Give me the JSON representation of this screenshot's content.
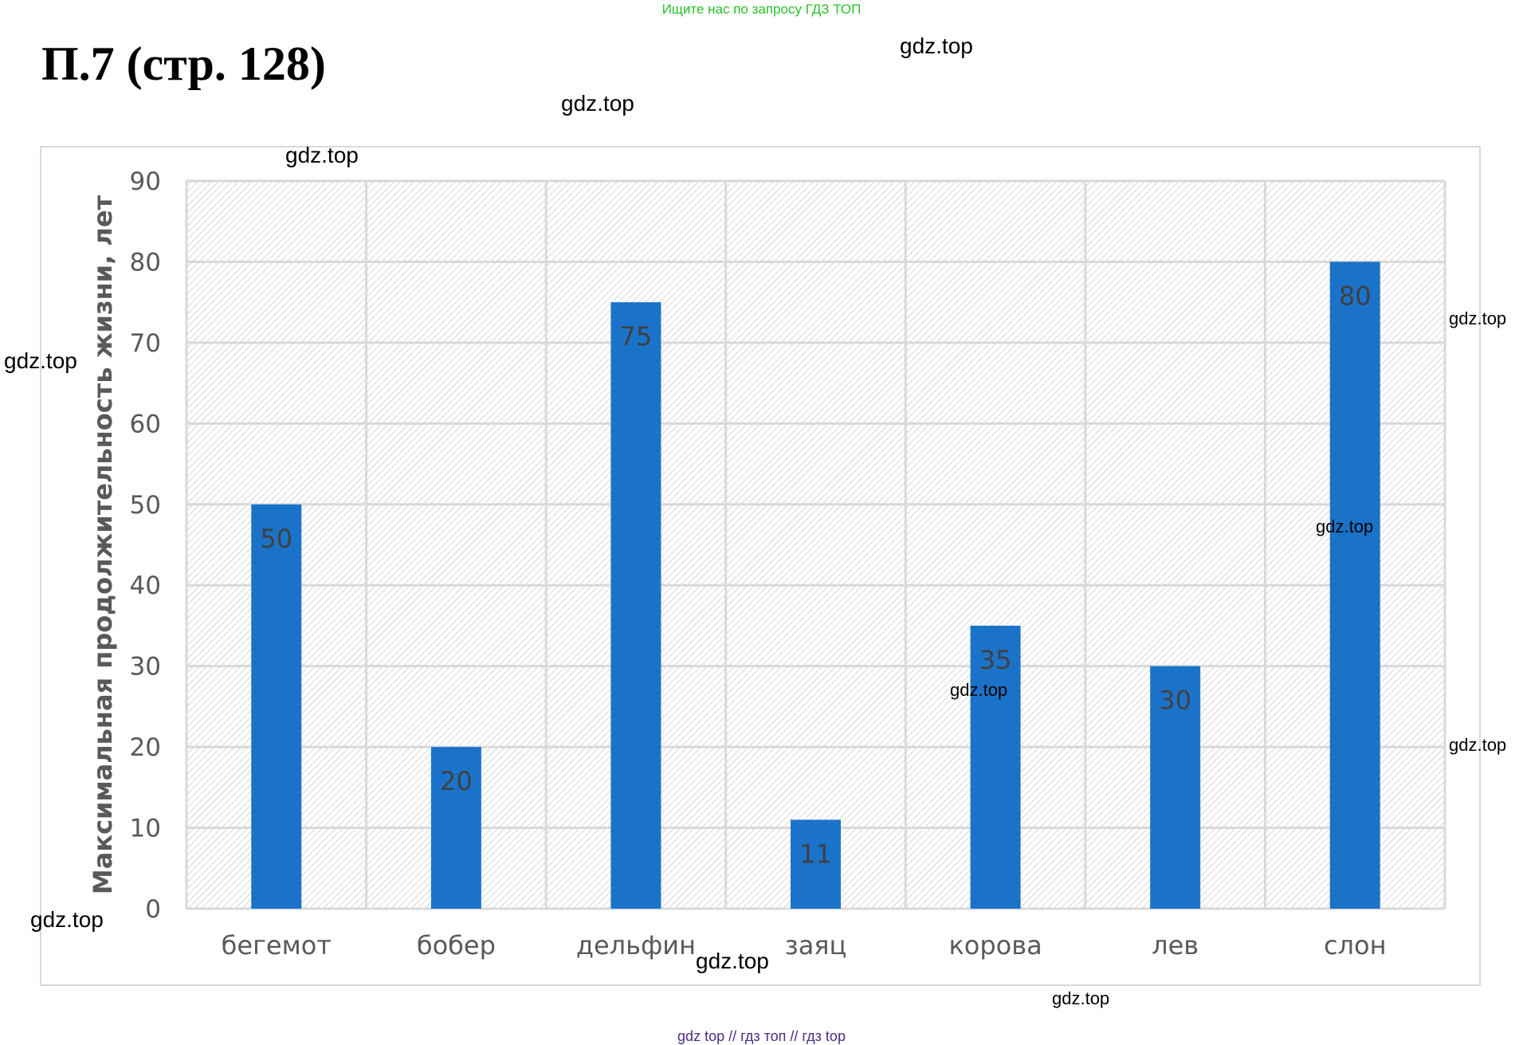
{
  "header": {
    "banner": "Ищите нас по запросу ГДЗ ТОП",
    "title": "П.7 (стр. 128)"
  },
  "watermarks": {
    "wm_1": "gdz.top",
    "wm_2": "gdz.top",
    "wm_3": "gdz.top",
    "wm_4": "gdz.top",
    "wm_5": "gdz.top",
    "wm_6": "gdz.top",
    "wm_7": "gdz.top",
    "wm_8": "gdz.top",
    "wm_9": "gdz.top",
    "wm_10": "gdz.top",
    "wm_11": "gdz.top"
  },
  "footer": {
    "text": "gdz top  //  гдз топ  //  гдз top"
  },
  "colors": {
    "bar": "#1a73c8",
    "grid": "#d9d9d9",
    "text": "#595959",
    "label": "#404040"
  },
  "chart_data": {
    "type": "bar",
    "categories": [
      "бегемот",
      "бобер",
      "дельфин",
      "заяц",
      "корова",
      "лев",
      "слон"
    ],
    "values": [
      50,
      20,
      75,
      11,
      35,
      30,
      80
    ],
    "ylabel": "Максимальная продолжительность жизни, лет",
    "ylim": [
      0,
      90
    ],
    "yticks": [
      0,
      10,
      20,
      30,
      40,
      50,
      60,
      70,
      80,
      90
    ],
    "data_labels": true,
    "grid": true,
    "plot_background": "diagonal-hatch"
  }
}
